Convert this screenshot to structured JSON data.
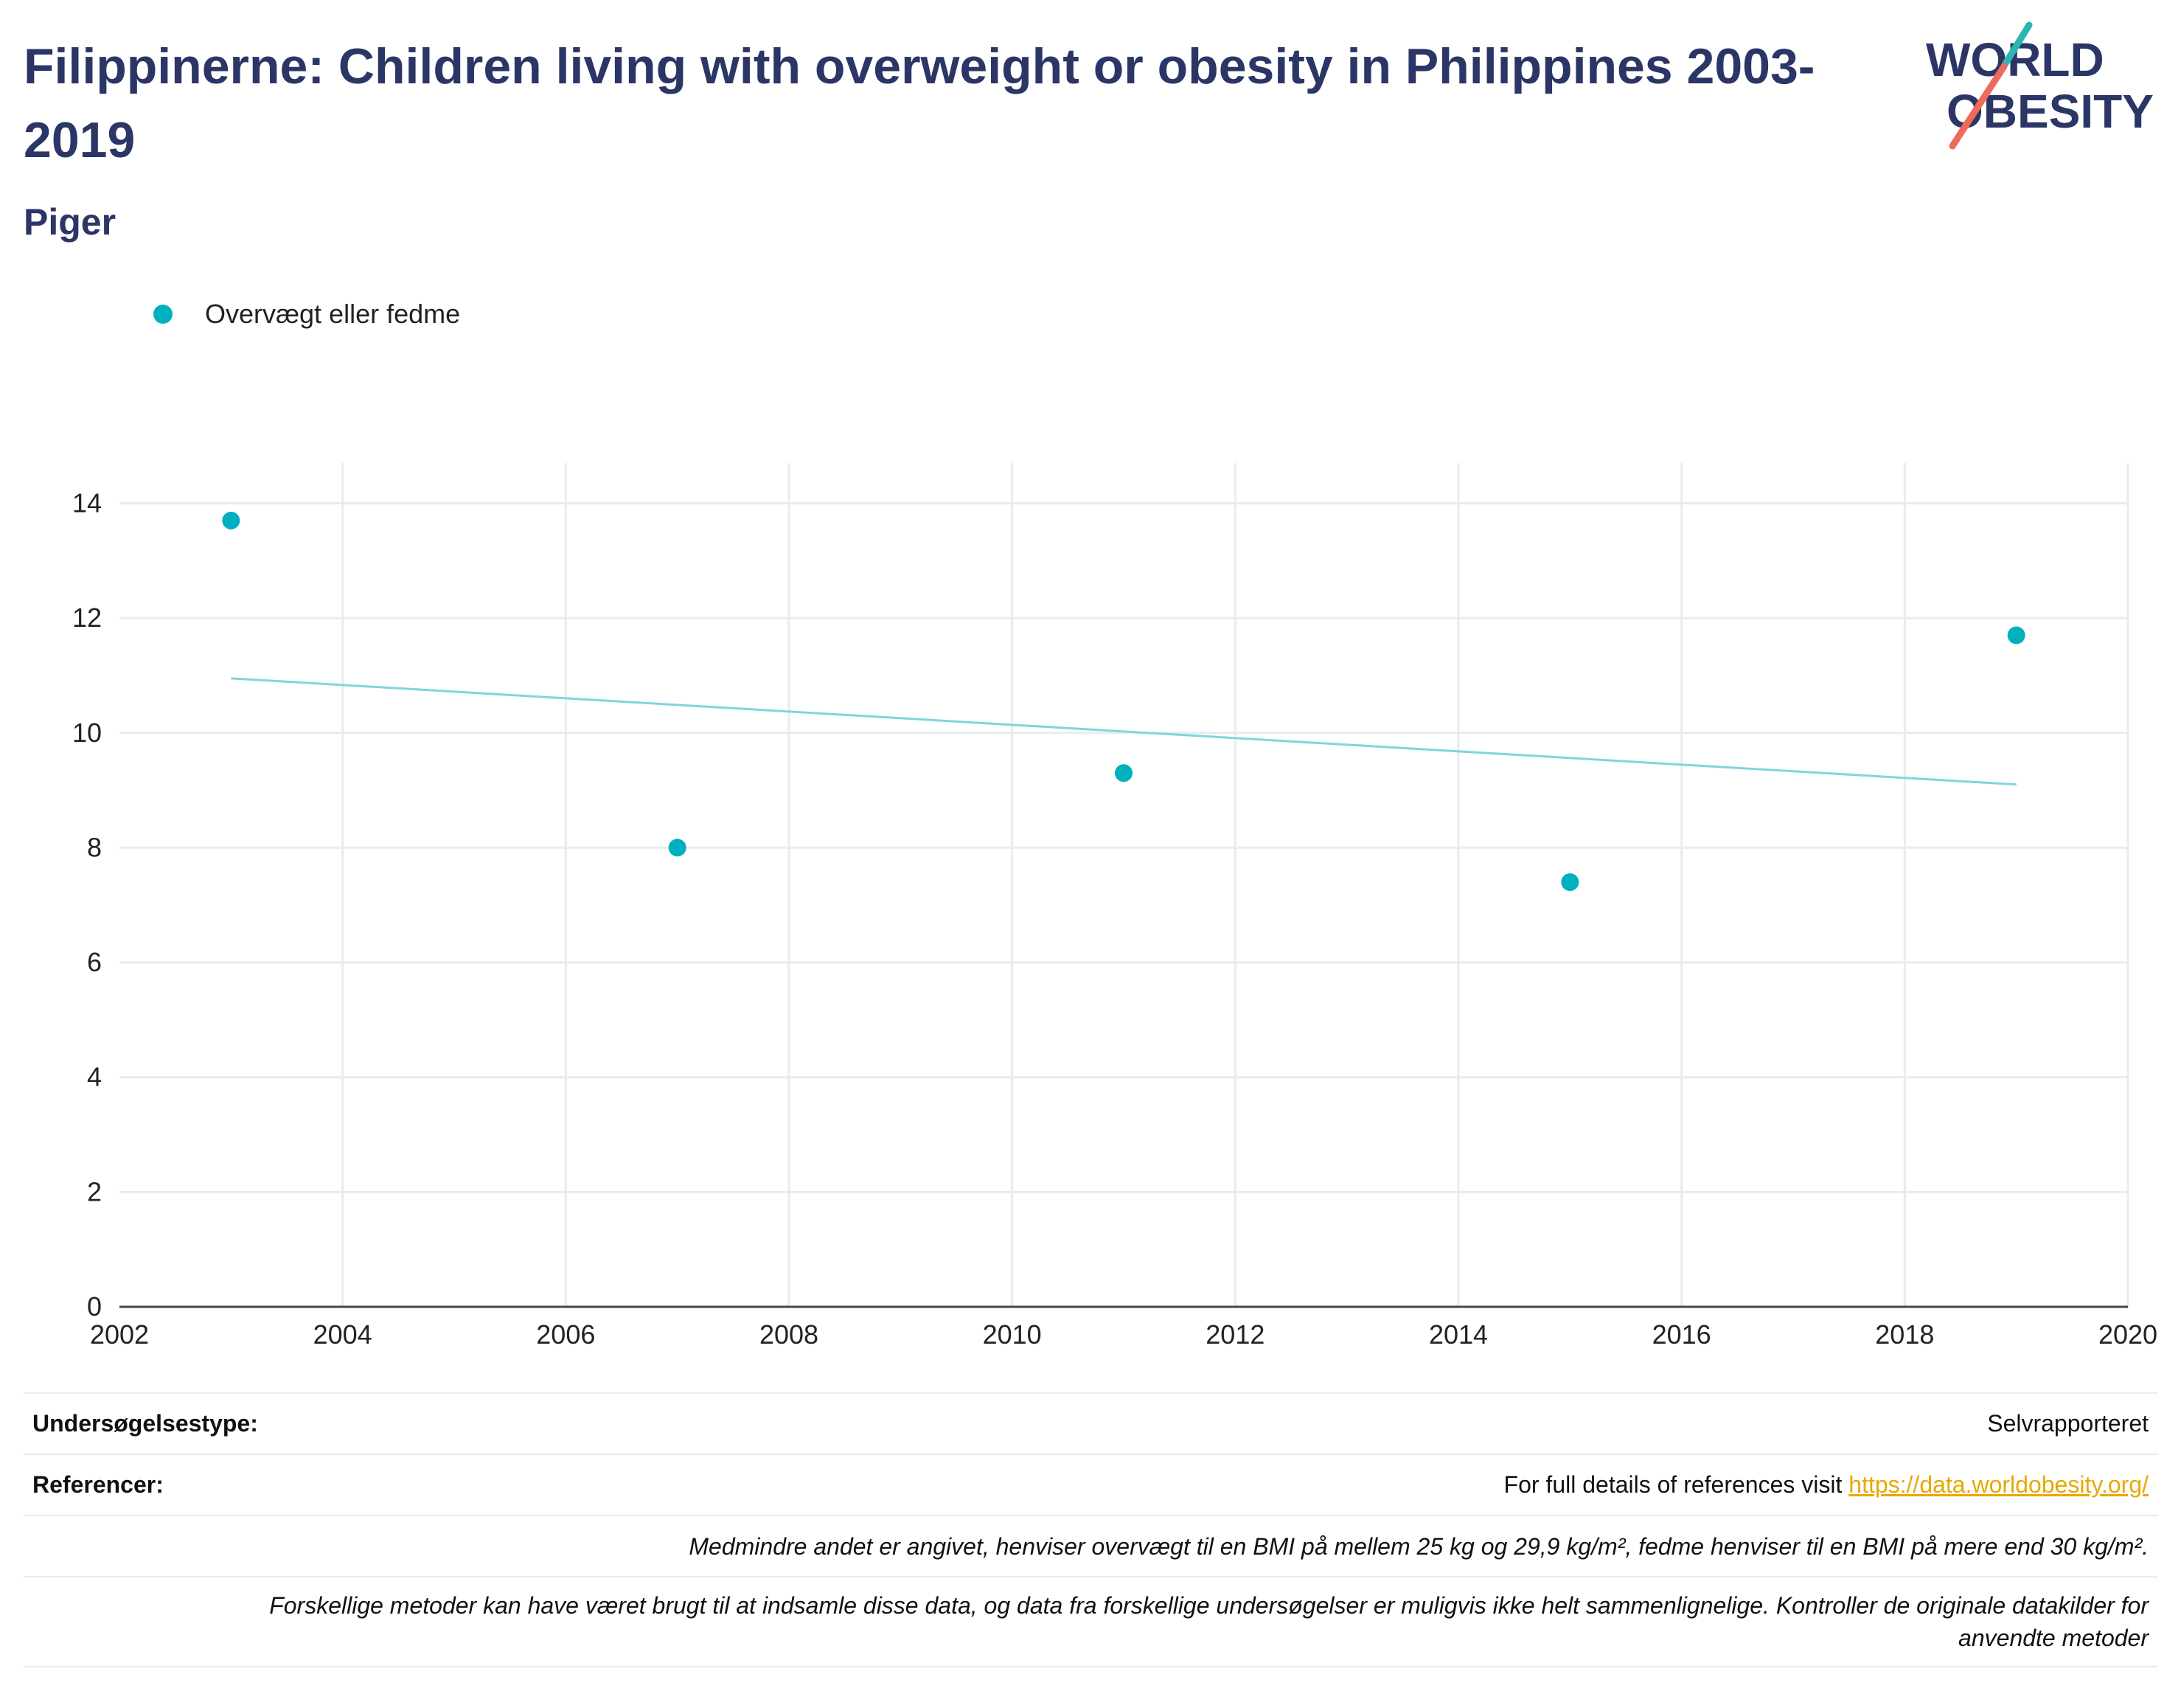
{
  "header": {
    "title": "Filippinerne: Children living with overweight or obesity in Philippines 2003-2019",
    "subtitle": "Piger"
  },
  "logo": {
    "line1": "WORLD",
    "line2": "OBESITY"
  },
  "colors": {
    "point": "#00b0bf",
    "trend": "#7fd6dc",
    "title": "#2b3666",
    "grid": "#e9ebef",
    "link": "#e8a800"
  },
  "chart_data": {
    "type": "scatter",
    "series": [
      {
        "name": "Overvægt eller fedme",
        "x": [
          2003,
          2007,
          2011,
          2015,
          2019
        ],
        "y": [
          13.7,
          8.0,
          9.3,
          7.4,
          11.7
        ]
      }
    ],
    "trendline": {
      "x": [
        2003,
        2019
      ],
      "y": [
        10.95,
        9.1
      ]
    },
    "xlim": [
      2002,
      2020
    ],
    "ylim": [
      0,
      14.7
    ],
    "xticks": [
      2002,
      2004,
      2006,
      2008,
      2010,
      2012,
      2014,
      2016,
      2018,
      2020
    ],
    "yticks": [
      0,
      2,
      4,
      6,
      8,
      10,
      12,
      14
    ],
    "grid": true,
    "legend_position": "top-left"
  },
  "info_table": {
    "survey_type_label": "Undersøgelsestype:",
    "survey_type_value": "Selvrapporteret",
    "references_label": "Referencer:",
    "references_text": "For full details of references visit ",
    "references_link": "https://data.worldobesity.org/",
    "note1": "Medmindre andet er angivet, henviser overvægt til en BMI på mellem 25 kg og 29,9 kg/m², fedme henviser til en BMI på mere end 30 kg/m².",
    "note2_line1": "Forskellige metoder kan have været brugt til at indsamle disse data, og data fra forskellige undersøgelser er muligvis ikke helt sammenlignelige. Kontroller de originale datakilder for",
    "note2_line2": "anvendte metoder"
  }
}
